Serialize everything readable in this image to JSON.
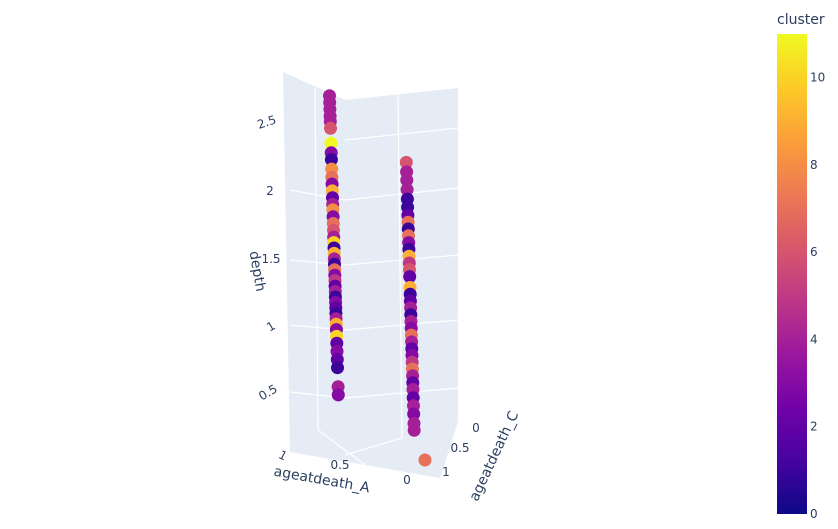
{
  "chart_data": {
    "type": "scatter3d",
    "axes": {
      "x": {
        "label": "ageatdeath_A",
        "ticks": [
          0,
          0.5,
          1
        ]
      },
      "y": {
        "label": "ageatdeath_C",
        "ticks": [
          0,
          0.5,
          1
        ]
      },
      "z": {
        "label": "depth",
        "ticks": [
          0.5,
          1,
          1.5,
          2,
          2.5
        ]
      }
    },
    "colorbar": {
      "title": "cluster",
      "range": [
        0,
        11
      ],
      "ticks": [
        0,
        2,
        4,
        6,
        8,
        10
      ],
      "colorscale": [
        "#0d0887",
        "#46039f",
        "#7201a8",
        "#9c179e",
        "#bd3786",
        "#d8576b",
        "#ed7953",
        "#fb9f3a",
        "#fdca26",
        "#f0f921"
      ]
    },
    "series": [
      {
        "x": 1,
        "y": 0,
        "points": [
          {
            "z": 2.62,
            "c": 4
          },
          {
            "z": 2.57,
            "c": 4
          },
          {
            "z": 2.52,
            "c": 4
          },
          {
            "z": 2.47,
            "c": 4
          },
          {
            "z": 2.43,
            "c": 4
          },
          {
            "z": 2.38,
            "c": 6
          },
          {
            "z": 2.27,
            "c": 11
          },
          {
            "z": 2.2,
            "c": 3
          },
          {
            "z": 2.15,
            "c": 1
          },
          {
            "z": 2.08,
            "c": 8
          },
          {
            "z": 2.02,
            "c": 7
          },
          {
            "z": 1.97,
            "c": 3
          },
          {
            "z": 1.92,
            "c": 9
          },
          {
            "z": 1.87,
            "c": 2
          },
          {
            "z": 1.82,
            "c": 4
          },
          {
            "z": 1.78,
            "c": 8
          },
          {
            "z": 1.73,
            "c": 3
          },
          {
            "z": 1.68,
            "c": 7
          },
          {
            "z": 1.63,
            "c": 6
          },
          {
            "z": 1.58,
            "c": 4
          },
          {
            "z": 1.54,
            "c": 10
          },
          {
            "z": 1.5,
            "c": 1
          },
          {
            "z": 1.46,
            "c": 9
          },
          {
            "z": 1.42,
            "c": 4
          },
          {
            "z": 1.38,
            "c": 1
          },
          {
            "z": 1.34,
            "c": 7
          },
          {
            "z": 1.3,
            "c": 3
          },
          {
            "z": 1.26,
            "c": 5
          },
          {
            "z": 1.22,
            "c": 2
          },
          {
            "z": 1.18,
            "c": 4
          },
          {
            "z": 1.14,
            "c": 1
          },
          {
            "z": 1.1,
            "c": 3
          },
          {
            "z": 1.06,
            "c": 2
          },
          {
            "z": 1.02,
            "c": 1
          },
          {
            "z": 0.98,
            "c": 4
          },
          {
            "z": 0.94,
            "c": 9
          },
          {
            "z": 0.9,
            "c": 3
          },
          {
            "z": 0.85,
            "c": 10
          },
          {
            "z": 0.8,
            "c": 2
          },
          {
            "z": 0.74,
            "c": 3
          },
          {
            "z": 0.68,
            "c": 2
          },
          {
            "z": 0.62,
            "c": 1
          },
          {
            "z": 0.48,
            "c": 4
          },
          {
            "z": 0.42,
            "c": 3
          }
        ]
      },
      {
        "x": 0,
        "y": 0.5,
        "points": [
          {
            "z": 2.17,
            "c": 6
          },
          {
            "z": 2.1,
            "c": 4
          },
          {
            "z": 2.04,
            "c": 4
          },
          {
            "z": 1.97,
            "c": 4
          },
          {
            "z": 1.9,
            "c": 1
          },
          {
            "z": 1.84,
            "c": 1
          },
          {
            "z": 1.78,
            "c": 2
          },
          {
            "z": 1.73,
            "c": 7
          },
          {
            "z": 1.68,
            "c": 1
          },
          {
            "z": 1.63,
            "c": 7
          },
          {
            "z": 1.58,
            "c": 3
          },
          {
            "z": 1.53,
            "c": 1
          },
          {
            "z": 1.48,
            "c": 9
          },
          {
            "z": 1.43,
            "c": 5
          },
          {
            "z": 1.38,
            "c": 6
          },
          {
            "z": 1.33,
            "c": 2
          },
          {
            "z": 1.25,
            "c": 9
          },
          {
            "z": 1.2,
            "c": 1
          },
          {
            "z": 1.15,
            "c": 2
          },
          {
            "z": 1.1,
            "c": 4
          },
          {
            "z": 1.05,
            "c": 1
          },
          {
            "z": 1.0,
            "c": 4
          },
          {
            "z": 0.95,
            "c": 3
          },
          {
            "z": 0.9,
            "c": 7
          },
          {
            "z": 0.85,
            "c": 4
          },
          {
            "z": 0.8,
            "c": 2
          },
          {
            "z": 0.75,
            "c": 3
          },
          {
            "z": 0.7,
            "c": 5
          },
          {
            "z": 0.65,
            "c": 7
          },
          {
            "z": 0.6,
            "c": 4
          },
          {
            "z": 0.55,
            "c": 2
          },
          {
            "z": 0.5,
            "c": 4
          },
          {
            "z": 0.44,
            "c": 2
          },
          {
            "z": 0.38,
            "c": 4
          },
          {
            "z": 0.32,
            "c": 3
          },
          {
            "z": 0.25,
            "c": 4
          },
          {
            "z": 0.2,
            "c": 4
          }
        ]
      },
      {
        "x": 0,
        "y": 1,
        "points": [
          {
            "z": 0.0,
            "c": 7
          }
        ]
      }
    ]
  }
}
